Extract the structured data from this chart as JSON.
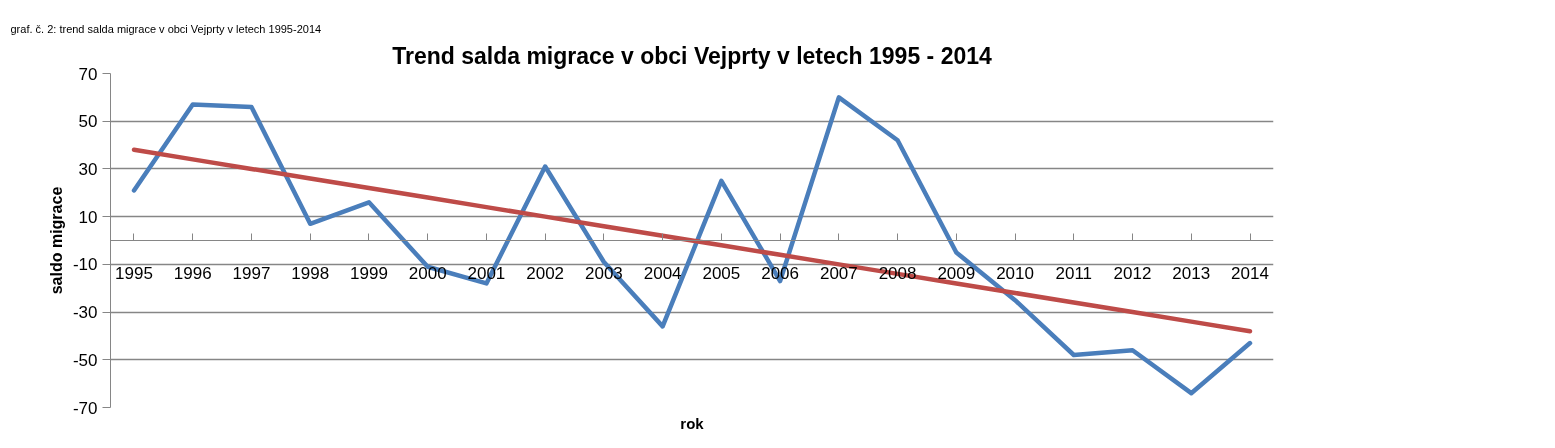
{
  "chart_data": {
    "type": "line",
    "title": "Trend salda migrace v obci Vejprty v letech 1995 - 2014",
    "xlabel": "rok",
    "ylabel": "saldo migrace",
    "annotations": [
      "graf. č. 2: trend salda migrace v obci Vejprty v letech 1995-2014"
    ],
    "categories": [
      "1995",
      "1996",
      "1997",
      "1998",
      "1999",
      "2000",
      "2001",
      "2002",
      "2003",
      "2004",
      "2005",
      "2006",
      "2007",
      "2008",
      "2009",
      "2010",
      "2011",
      "2012",
      "2013",
      "2014"
    ],
    "series": [
      {
        "color": "#4a7ebb",
        "values": [
          21,
          57,
          56,
          7,
          16,
          -11,
          -18,
          31,
          -9,
          -36,
          25,
          -17,
          60,
          42,
          -5,
          -25,
          -48,
          -46,
          -64,
          -43
        ]
      },
      {
        "color": "#be4b48",
        "values": [
          38,
          34,
          30,
          26,
          22,
          18,
          14,
          10,
          6,
          2,
          -2,
          -6,
          -10,
          -14,
          -18,
          -22,
          -26,
          -30,
          -34,
          -38
        ]
      }
    ],
    "ylim": [
      -70,
      70
    ],
    "yticks": [
      70,
      50,
      30,
      10,
      -10,
      -30,
      -50,
      -70
    ],
    "grid": "y",
    "marker": "none",
    "line_style": "solid"
  }
}
